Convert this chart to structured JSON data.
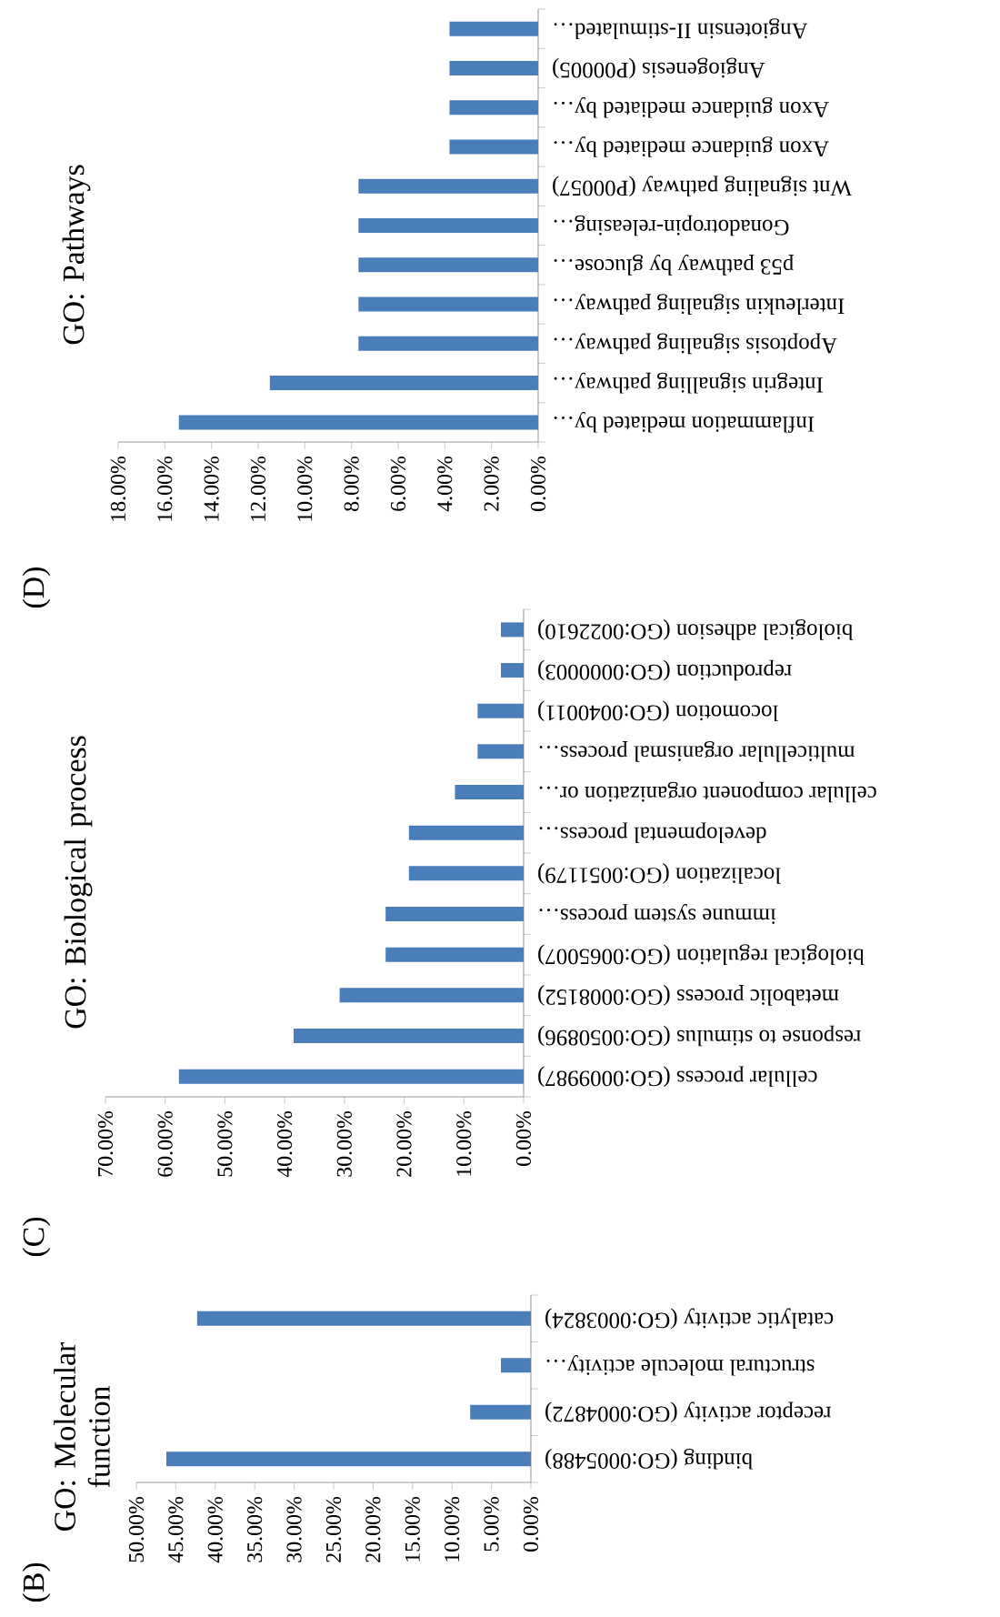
{
  "chart_data": [
    {
      "type": "bar",
      "orientation": "horizontal",
      "title": "GO: Pathways",
      "annotations": [
        "(D)"
      ],
      "color": "#4a7ebb",
      "categories": [
        "Angiotensin II-stimulated…",
        "Angiogenesis (P00005)",
        "Axon guidance mediated by…",
        "Axon guidance mediated by…",
        "Wnt signaling pathway (P00057)",
        "Gonadotropin-releasing…",
        "p53 pathway by glucose…",
        "Interleukin signaling pathway…",
        "Apoptosis signaling pathway…",
        "Integrin signalling pathway…",
        "Inflammation mediated by…"
      ],
      "values": [
        3.8,
        3.8,
        3.8,
        3.8,
        7.7,
        7.7,
        7.7,
        7.7,
        7.7,
        11.5,
        15.4
      ],
      "xlim": [
        18,
        0
      ],
      "xticks": [
        {
          "value": 0,
          "label": "0.00%"
        },
        {
          "value": 2,
          "label": "2.00%"
        },
        {
          "value": 4,
          "label": "4.00%"
        },
        {
          "value": 6,
          "label": "6.00%"
        },
        {
          "value": 8,
          "label": "8.00%"
        },
        {
          "value": 10,
          "label": "10.00%"
        },
        {
          "value": 12,
          "label": "12.00%"
        },
        {
          "value": 14,
          "label": "14.00%"
        },
        {
          "value": 16,
          "label": "16.00%"
        },
        {
          "value": 18,
          "label": "18.00%"
        }
      ]
    },
    {
      "type": "bar",
      "orientation": "horizontal",
      "title": "GO: Biological process",
      "annotations": [
        "(C)"
      ],
      "color": "#4a7ebb",
      "categories": [
        "biological adhesion (GO:0022610)",
        "reproduction (GO:0000003)",
        "locomotion (GO:0040011)",
        "multicellular organismal process…",
        "cellular component organization or…",
        "developmental process…",
        "localization (GO:0051179)",
        "immune system process…",
        "biological regulation (GO:0065007)",
        "metabolic process (GO:0008152)",
        "response to stimulus (GO:0050896)",
        "cellular process (GO:0009987)"
      ],
      "values": [
        3.8,
        3.8,
        7.7,
        7.7,
        11.5,
        19.2,
        19.2,
        23.1,
        23.1,
        30.8,
        38.5,
        57.7
      ],
      "xlim": [
        70,
        0
      ],
      "xticks": [
        {
          "value": 0,
          "label": "0.00%"
        },
        {
          "value": 10,
          "label": "10.00%"
        },
        {
          "value": 20,
          "label": "20.00%"
        },
        {
          "value": 30,
          "label": "30.00%"
        },
        {
          "value": 40,
          "label": "40.00%"
        },
        {
          "value": 50,
          "label": "50.00%"
        },
        {
          "value": 60,
          "label": "60.00%"
        },
        {
          "value": 70,
          "label": "70.00%"
        }
      ]
    },
    {
      "type": "bar",
      "orientation": "horizontal",
      "title": "GO: Molecular function",
      "annotations": [
        "(B)"
      ],
      "color": "#4a7ebb",
      "categories": [
        "catalytic activity (GO:0003824)",
        "structural molecule activity…",
        "receptor activity (GO:0004872)",
        "binding (GO:0005488)"
      ],
      "values": [
        42.3,
        3.8,
        7.7,
        46.2
      ],
      "xlim": [
        50,
        0
      ],
      "xticks": [
        {
          "value": 0,
          "label": "0.00%"
        },
        {
          "value": 5,
          "label": "5.00%"
        },
        {
          "value": 10,
          "label": "10.00%"
        },
        {
          "value": 15,
          "label": "15.00%"
        },
        {
          "value": 20,
          "label": "20.00%"
        },
        {
          "value": 25,
          "label": "25.00%"
        },
        {
          "value": 30,
          "label": "30.00%"
        },
        {
          "value": 35,
          "label": "35.00%"
        },
        {
          "value": 40,
          "label": "40.00%"
        },
        {
          "value": 45,
          "label": "45.00%"
        },
        {
          "value": 50,
          "label": "50.00%"
        }
      ]
    }
  ]
}
